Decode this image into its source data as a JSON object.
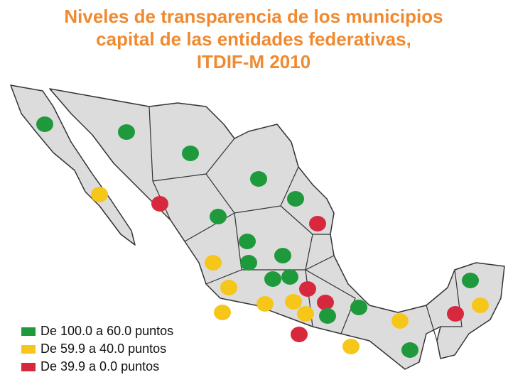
{
  "title": [
    "Niveles de transparencia de los municipios",
    "capital de las entidades federativas,",
    "ITDIF-M 2010"
  ],
  "legend": [
    {
      "label": "De 100.0 a 60.0 puntos",
      "color": "#1e9a3c"
    },
    {
      "label": "De 59.9 a 40.0 puntos",
      "color": "#f6c619"
    },
    {
      "label": "De 39.9 a 0.0 puntos",
      "color": "#d8283e"
    }
  ],
  "markers": [
    0,
    0,
    0,
    0,
    0,
    1,
    2,
    0,
    2,
    0,
    0,
    0,
    1,
    0,
    0,
    1,
    2,
    1,
    1,
    2,
    1,
    0,
    1,
    0,
    0,
    1,
    2,
    1,
    2,
    1,
    0
  ]
}
